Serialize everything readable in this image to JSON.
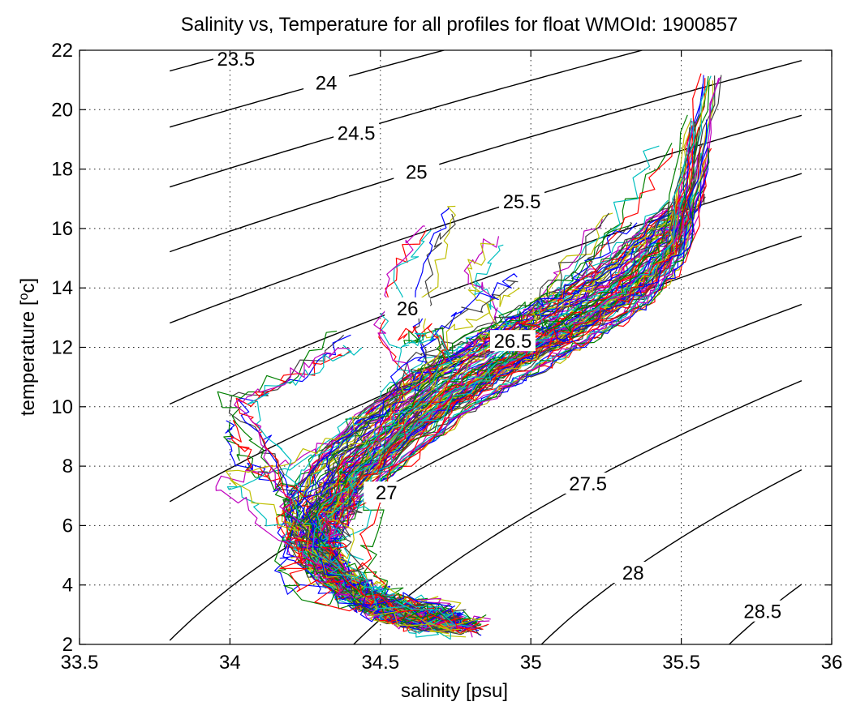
{
  "chart_data": {
    "type": "line",
    "title": "Salinity vs, Temperature for all profiles for float WMOId: 1900857",
    "xlabel": "salinity [psu]",
    "ylabel": "temperature [",
    "ylabel_sup": "o",
    "ylabel_unit": "c]",
    "xlim": [
      33.5,
      36
    ],
    "ylim": [
      2,
      22
    ],
    "xticks": [
      33.5,
      34,
      34.5,
      35,
      35.5,
      36
    ],
    "yticks": [
      2,
      4,
      6,
      8,
      10,
      12,
      14,
      16,
      18,
      20,
      22
    ],
    "xtick_labels": [
      "33.5",
      "34",
      "34.5",
      "35",
      "35.5",
      "36"
    ],
    "ytick_labels": [
      "2",
      "4",
      "6",
      "8",
      "10",
      "12",
      "14",
      "16",
      "18",
      "20",
      "22"
    ],
    "grid": true,
    "density_contours": [
      {
        "label": "23.5",
        "label_at": [
          34.02,
          21.7
        ]
      },
      {
        "label": "24",
        "label_at": [
          34.32,
          20.9
        ]
      },
      {
        "label": "24.5",
        "label_at": [
          34.42,
          19.2
        ]
      },
      {
        "label": "25",
        "label_at": [
          34.62,
          17.9
        ]
      },
      {
        "label": "25.5",
        "label_at": [
          34.97,
          16.9
        ]
      },
      {
        "label": "26",
        "label_at": [
          34.59,
          13.3
        ]
      },
      {
        "label": "26.5",
        "label_at": [
          34.94,
          12.2
        ]
      },
      {
        "label": "27",
        "label_at": [
          34.52,
          7.1
        ]
      },
      {
        "label": "27.5",
        "label_at": [
          35.19,
          7.4
        ]
      },
      {
        "label": "28",
        "label_at": [
          35.34,
          4.4
        ]
      },
      {
        "label": "28.5",
        "label_at": [
          35.77,
          3.1
        ]
      }
    ],
    "profile_colors": [
      "#0000ff",
      "#008000",
      "#ff0000",
      "#00bfbf",
      "#bf00bf",
      "#bfbf00",
      "#404040"
    ],
    "profiles_envelope": {
      "salinity": [
        34.82,
        34.6,
        34.42,
        34.3,
        34.32,
        34.42,
        34.58,
        34.75,
        34.95,
        35.1,
        35.2,
        35.28,
        35.45,
        35.55
      ],
      "temperature": [
        2.7,
        3.0,
        3.8,
        4.8,
        6.0,
        7.5,
        9.0,
        10.5,
        11.6,
        12.6,
        13.3,
        13.9,
        15.4,
        17.6
      ]
    },
    "series": [
      {
        "salinity": [
          34.81,
          34.62,
          34.45,
          34.33,
          34.3,
          34.38,
          34.55,
          34.72,
          34.9,
          35.05,
          35.18,
          35.3,
          35.45,
          35.55
        ],
        "temperature": [
          2.6,
          2.8,
          3.5,
          4.5,
          5.8,
          7.2,
          8.8,
          10.2,
          11.3,
          12.2,
          13.0,
          13.8,
          15.2,
          17.2
        ]
      },
      {
        "salinity": [
          34.78,
          34.58,
          34.4,
          34.28,
          34.27,
          34.36,
          34.52,
          34.7,
          34.88,
          35.02,
          35.15,
          35.28,
          35.42,
          35.52
        ],
        "temperature": [
          2.7,
          2.9,
          3.7,
          4.9,
          6.2,
          7.6,
          9.1,
          10.5,
          11.5,
          12.4,
          13.2,
          14.0,
          15.4,
          16.9
        ]
      },
      {
        "salinity": [
          34.82,
          34.6,
          34.43,
          34.31,
          34.29,
          34.4,
          34.57,
          34.74,
          34.92,
          35.08,
          35.22,
          35.35,
          35.5,
          35.6
        ],
        "temperature": [
          2.65,
          2.85,
          3.6,
          4.6,
          5.9,
          7.3,
          8.9,
          10.3,
          11.4,
          12.3,
          13.1,
          13.9,
          15.6,
          21.0
        ]
      },
      {
        "salinity": [
          34.75,
          34.55,
          34.38,
          34.26,
          34.24,
          34.33,
          34.48,
          34.66,
          34.85,
          34.99,
          35.12,
          35.25,
          35.4,
          35.5
        ],
        "temperature": [
          2.75,
          3.0,
          3.9,
          5.1,
          6.4,
          7.9,
          9.4,
          10.8,
          11.8,
          12.7,
          13.4,
          14.2,
          15.6,
          16.4
        ]
      },
      {
        "salinity": [
          34.79,
          34.61,
          34.46,
          34.35,
          34.33,
          34.43,
          34.6,
          34.78,
          34.96,
          35.12,
          35.25,
          35.38,
          35.5,
          35.58
        ],
        "temperature": [
          2.6,
          2.75,
          3.4,
          4.3,
          5.5,
          6.9,
          8.4,
          9.9,
          11.0,
          11.9,
          12.7,
          13.5,
          15.0,
          18.7
        ]
      },
      {
        "salinity": [
          34.72,
          34.5,
          34.34,
          34.22,
          34.2,
          34.3,
          34.45,
          34.62,
          34.8,
          34.95,
          35.08,
          35.2,
          35.35,
          35.48
        ],
        "temperature": [
          2.8,
          3.1,
          4.0,
          5.3,
          6.6,
          8.1,
          9.6,
          11.0,
          12.0,
          12.8,
          13.5,
          14.2,
          15.5,
          16.8
        ]
      },
      {
        "salinity": [
          34.8,
          34.6,
          34.44,
          34.32,
          34.3,
          34.41,
          34.58,
          34.76,
          34.94,
          35.1,
          35.24,
          35.36,
          35.48,
          35.55
        ],
        "temperature": [
          2.7,
          2.9,
          3.6,
          4.7,
          6.0,
          7.4,
          9.0,
          10.4,
          11.5,
          12.4,
          13.2,
          14.0,
          15.4,
          19.6
        ]
      },
      {
        "salinity": [
          34.68,
          34.4,
          34.22,
          34.18,
          34.25,
          34.12,
          34.05,
          34.02,
          34.0
        ],
        "temperature": [
          2.8,
          3.2,
          4.0,
          5.2,
          6.8,
          7.6,
          8.0,
          8.6,
          9.4
        ]
      },
      {
        "salinity": [
          34.7,
          34.45,
          34.3,
          34.1,
          33.95,
          34.2,
          34.35,
          34.55,
          34.7
        ],
        "temperature": [
          3.0,
          3.6,
          5.0,
          6.6,
          7.6,
          8.2,
          9.0,
          10.4,
          11.6
        ]
      },
      {
        "salinity": [
          34.76,
          34.52,
          34.35,
          34.24,
          34.18,
          34.1,
          34.0,
          34.2,
          34.38
        ],
        "temperature": [
          2.9,
          3.4,
          4.6,
          6.0,
          7.2,
          8.8,
          10.2,
          10.8,
          12.4
        ]
      },
      {
        "salinity": [
          34.74,
          34.5,
          34.36,
          34.28,
          34.4,
          34.55,
          34.6,
          34.5,
          34.56,
          34.66
        ],
        "temperature": [
          3.0,
          3.5,
          4.5,
          6.0,
          7.8,
          9.5,
          11.0,
          12.5,
          14.6,
          16.0
        ]
      },
      {
        "salinity": [
          34.77,
          34.54,
          34.38,
          34.3,
          34.42,
          34.6,
          34.68,
          34.65,
          34.7,
          34.75
        ],
        "temperature": [
          2.9,
          3.3,
          4.4,
          5.9,
          7.6,
          9.4,
          11.2,
          13.0,
          15.4,
          16.6
        ]
      },
      {
        "salinity": [
          34.8,
          34.6,
          34.47,
          34.42,
          34.5,
          34.7,
          34.9,
          35.1,
          35.3,
          35.45
        ],
        "temperature": [
          2.8,
          3.0,
          3.9,
          5.4,
          7.6,
          9.8,
          11.4,
          13.8,
          16.4,
          18.8
        ]
      },
      {
        "salinity": [
          34.78,
          34.56,
          34.4,
          34.35,
          34.45,
          34.62,
          34.82,
          34.98,
          35.1,
          35.25
        ],
        "temperature": [
          2.8,
          3.1,
          4.2,
          5.8,
          7.8,
          9.9,
          11.6,
          12.8,
          14.6,
          16.4
        ]
      },
      {
        "salinity": [
          34.73,
          34.5,
          34.36,
          34.3,
          34.45,
          34.63,
          34.8,
          34.95,
          35.05,
          35.18
        ],
        "temperature": [
          2.9,
          3.3,
          4.4,
          6.0,
          8.1,
          10.2,
          11.9,
          12.9,
          12.6,
          12.3
        ]
      },
      {
        "salinity": [
          34.75,
          34.52,
          34.37,
          34.3,
          34.44,
          34.6,
          34.78,
          34.92,
          34.85,
          34.8,
          34.9
        ],
        "temperature": [
          2.9,
          3.3,
          4.5,
          6.1,
          8.0,
          10.0,
          11.8,
          12.8,
          13.8,
          14.6,
          15.6
        ]
      },
      {
        "salinity": [
          34.7,
          34.47,
          34.33,
          34.27,
          34.38,
          34.55,
          34.72,
          34.9,
          35.08,
          35.2,
          35.35
        ],
        "temperature": [
          3.0,
          3.5,
          4.7,
          6.3,
          8.3,
          10.3,
          11.8,
          12.9,
          13.9,
          14.8,
          16.2
        ]
      },
      {
        "salinity": [
          34.7,
          34.45,
          34.3,
          34.22,
          34.15,
          34.05,
          34.15,
          34.3,
          34.42
        ],
        "temperature": [
          3.0,
          3.6,
          4.8,
          6.4,
          8.4,
          10.0,
          10.6,
          11.4,
          11.9
        ]
      },
      {
        "salinity": [
          34.72,
          34.48,
          34.32,
          34.25,
          34.35,
          34.5,
          34.62,
          34.72,
          34.86,
          34.95
        ],
        "temperature": [
          3.0,
          3.5,
          4.7,
          6.3,
          8.2,
          10.0,
          11.6,
          12.8,
          13.6,
          14.2
        ]
      },
      {
        "salinity": [
          34.74,
          34.5,
          34.35,
          34.28,
          34.4,
          34.58,
          34.72,
          34.68,
          34.6,
          34.58
        ],
        "temperature": [
          2.9,
          3.4,
          4.5,
          6.1,
          8.0,
          10.0,
          11.6,
          12.6,
          12.4,
          12.2
        ]
      }
    ]
  }
}
